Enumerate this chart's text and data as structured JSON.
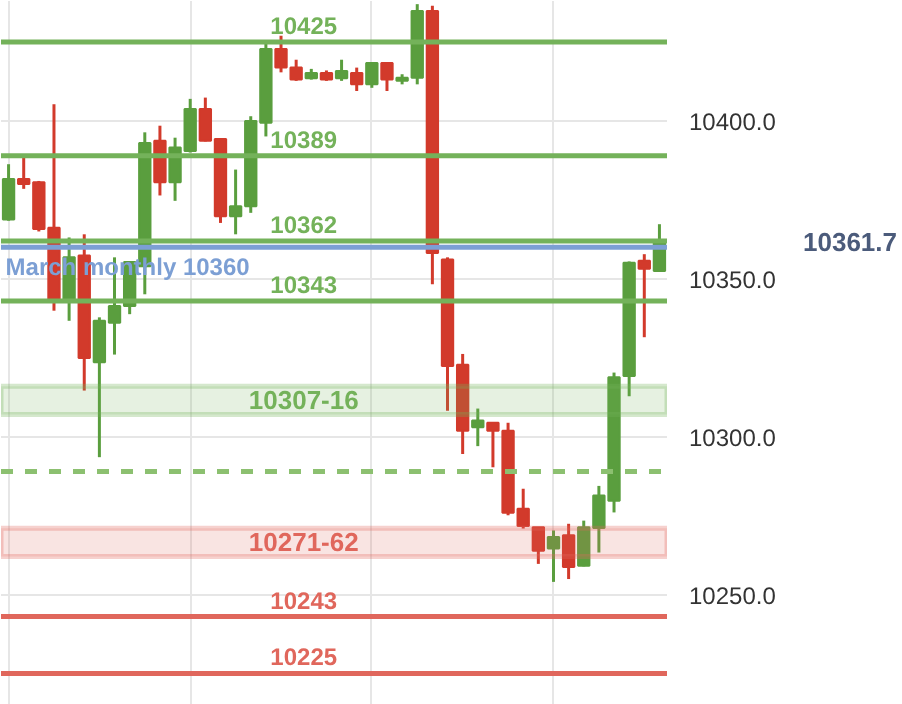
{
  "chart_data": {
    "type": "candlestick",
    "categories": [
      null,
      null,
      null,
      null,
      null,
      null,
      null,
      null,
      null,
      null,
      null,
      null,
      null,
      null,
      null,
      null,
      null,
      null,
      null,
      null,
      null,
      null,
      null,
      null,
      null,
      null,
      null,
      null,
      null,
      null,
      null,
      null,
      null,
      null,
      null,
      null,
      null,
      null,
      null,
      null,
      null,
      null,
      null,
      null
    ],
    "ohlc": [
      [
        10368.8,
        10386.3,
        10368.4,
        10381.6
      ],
      [
        10381.6,
        10388.4,
        10378.5,
        10380.0
      ],
      [
        10380.6,
        10381.0,
        10365.0,
        10365.8
      ],
      [
        10366.2,
        10405.3,
        10339.9,
        10343.0
      ],
      [
        10343.0,
        10363.1,
        10336.7,
        10356.8
      ],
      [
        10357.4,
        10364.1,
        10314.6,
        10324.9
      ],
      [
        10323.6,
        10337.8,
        10293.5,
        10336.7
      ],
      [
        10336.1,
        10356.8,
        10326.0,
        10341.4
      ],
      [
        10341.4,
        10355.6,
        10338.8,
        10355.3
      ],
      [
        10354.0,
        10396.4,
        10345.1,
        10393.0
      ],
      [
        10393.7,
        10398.5,
        10376.4,
        10380.6
      ],
      [
        10380.6,
        10394.7,
        10374.7,
        10391.6
      ],
      [
        10390.5,
        10407.0,
        10390.0,
        10403.8
      ],
      [
        10403.8,
        10407.4,
        10393.5,
        10393.7
      ],
      [
        10394.3,
        10394.5,
        10367.7,
        10369.8
      ],
      [
        10369.8,
        10384.6,
        10364.1,
        10373.0
      ],
      [
        10373.0,
        10401.5,
        10370.9,
        10400.0
      ],
      [
        10399.4,
        10424.9,
        10395.1,
        10422.8
      ],
      [
        10422.8,
        10427.0,
        10415.4,
        10416.9
      ],
      [
        10416.9,
        10419.4,
        10412.7,
        10413.1
      ],
      [
        10413.5,
        10416.5,
        10413.1,
        10415.2
      ],
      [
        10415.2,
        10416.0,
        10412.7,
        10413.1
      ],
      [
        10413.5,
        10419.4,
        10412.7,
        10415.8
      ],
      [
        10415.2,
        10416.9,
        10409.5,
        10411.6
      ],
      [
        10411.6,
        10418.4,
        10410.5,
        10418.4
      ],
      [
        10418.4,
        10418.4,
        10409.5,
        10413.1
      ],
      [
        10412.7,
        10414.8,
        10411.6,
        10413.7
      ],
      [
        10413.7,
        10437.0,
        10411.6,
        10434.8
      ],
      [
        10434.8,
        10436.5,
        10348.3,
        10358.2
      ],
      [
        10356.1,
        10356.8,
        10308.2,
        10322.4
      ],
      [
        10322.8,
        10326.2,
        10294.5,
        10301.9
      ],
      [
        10303.0,
        10308.9,
        10297.0,
        10305.1
      ],
      [
        10304.4,
        10304.4,
        10290.3,
        10301.9
      ],
      [
        10301.9,
        10304.4,
        10275.1,
        10275.9
      ],
      [
        10277.2,
        10283.5,
        10270.9,
        10271.7
      ],
      [
        10271.3,
        10271.3,
        10259.7,
        10263.9
      ],
      [
        10264.6,
        10270.3,
        10254.0,
        10268.2
      ],
      [
        10268.8,
        10272.4,
        10254.9,
        10258.7
      ],
      [
        10259.1,
        10273.4,
        10258.9,
        10271.3
      ],
      [
        10271.1,
        10284.4,
        10263.3,
        10281.4
      ],
      [
        10279.7,
        10320.3,
        10276.0,
        10318.8
      ],
      [
        10319.2,
        10355.5,
        10312.8,
        10355.1
      ],
      [
        10355.7,
        10357.8,
        10331.5,
        10353.2
      ],
      [
        10352.5,
        10367.3,
        10352.5,
        10361.7
      ]
    ],
    "colors": [
      "#5a9e3e",
      "#d23a2b",
      "#d23a2b",
      "#d23a2b",
      "#5a9e3e",
      "#d23a2b",
      "#5a9e3e",
      "#5a9e3e",
      "#5a9e3e",
      "#5a9e3e",
      "#d23a2b",
      "#5a9e3e",
      "#5a9e3e",
      "#d23a2b",
      "#d23a2b",
      "#5a9e3e",
      "#5a9e3e",
      "#5a9e3e",
      "#d23a2b",
      "#d23a2b",
      "#5a9e3e",
      "#d23a2b",
      "#5a9e3e",
      "#d23a2b",
      "#5a9e3e",
      "#d23a2b",
      "#5a9e3e",
      "#5a9e3e",
      "#d23a2b",
      "#d23a2b",
      "#d23a2b",
      "#5a9e3e",
      "#d23a2b",
      "#d23a2b",
      "#d23a2b",
      "#d23a2b",
      "#5a9e3e",
      "#d23a2b",
      "#5a9e3e",
      "#5a9e3e",
      "#5a9e3e",
      "#5a9e3e",
      "#d23a2b",
      "#5a9e3e"
    ],
    "ylim": [
      10215,
      10438
    ],
    "yticks": [
      {
        "value": 10250,
        "label": "10250.0"
      },
      {
        "value": 10300,
        "label": "10300.0"
      },
      {
        "value": 10350,
        "label": "10350.0"
      },
      {
        "value": 10400,
        "label": "10400.0"
      }
    ],
    "tick_labels": "y",
    "grid": true,
    "ref_lines": [
      {
        "axis": "y",
        "value": 10425,
        "label": "10425",
        "color": "#74b25a"
      },
      {
        "axis": "y",
        "value": 10389,
        "label": "10389",
        "color": "#74b25a"
      },
      {
        "axis": "y",
        "value": 10362,
        "label": "10362",
        "color": "#74b25a"
      },
      {
        "axis": "y",
        "value": 10360,
        "label": "March monthly 10360",
        "color": "#7c9fd4"
      },
      {
        "axis": "y",
        "value": 10343,
        "label": "10343",
        "color": "#74b25a"
      },
      {
        "axis": "y",
        "value": 10289,
        "label": null,
        "color": "#8cc070",
        "line_style": "dashed"
      },
      {
        "axis": "y",
        "value": 10243,
        "label": "10243",
        "color": "#e0675c"
      },
      {
        "axis": "y",
        "value": 10225,
        "label": "10225",
        "color": "#e0675c"
      }
    ],
    "bands": [
      {
        "axis": "y",
        "from": 10307,
        "to": 10316,
        "label": "10307-16",
        "color": "#74b25a"
      },
      {
        "axis": "y",
        "from": 10262,
        "to": 10271,
        "label": "10271-62",
        "color": "#e0675c"
      }
    ],
    "annotations": [
      "10361.7"
    ]
  }
}
